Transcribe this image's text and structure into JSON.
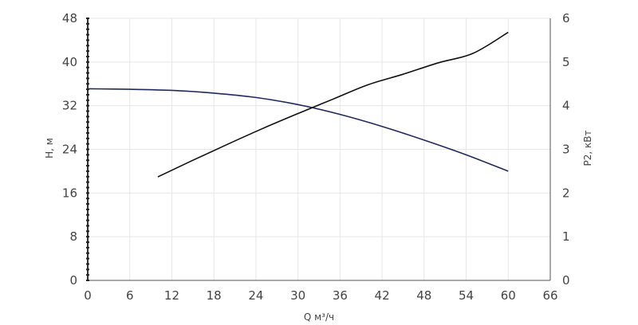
{
  "chart_data": {
    "type": "line",
    "xlabel": "Q м³/ч",
    "ylabel_left": "H, м",
    "ylabel_right": "P2, кВт",
    "xlim": [
      0,
      66
    ],
    "ylim_left": [
      0,
      48
    ],
    "ylim_right": [
      0,
      6
    ],
    "x_ticks": [
      "0",
      "6",
      "12",
      "18",
      "24",
      "30",
      "36",
      "42",
      "48",
      "54",
      "60",
      "66"
    ],
    "y_left_ticks": [
      "0",
      "8",
      "16",
      "24",
      "32",
      "40",
      "48"
    ],
    "y_right_ticks": [
      "0",
      "1",
      "2",
      "3",
      "4",
      "5",
      "6"
    ],
    "grid": true,
    "legend": "none",
    "series": [
      {
        "axis": "left",
        "color": "#1e2a5e",
        "x": [
          0,
          6,
          12,
          18,
          24,
          30,
          36,
          42,
          48,
          54,
          60
        ],
        "y": [
          35.1,
          35.0,
          34.8,
          34.3,
          33.5,
          32.2,
          30.4,
          28.2,
          25.7,
          23.0,
          20.0
        ]
      },
      {
        "axis": "right",
        "color": "#111111",
        "x": [
          10,
          15,
          20,
          25,
          30,
          35,
          40,
          45,
          50,
          55,
          60
        ],
        "y": [
          2.37,
          2.75,
          3.12,
          3.48,
          3.82,
          4.15,
          4.48,
          4.72,
          4.98,
          5.2,
          5.68
        ]
      }
    ]
  }
}
